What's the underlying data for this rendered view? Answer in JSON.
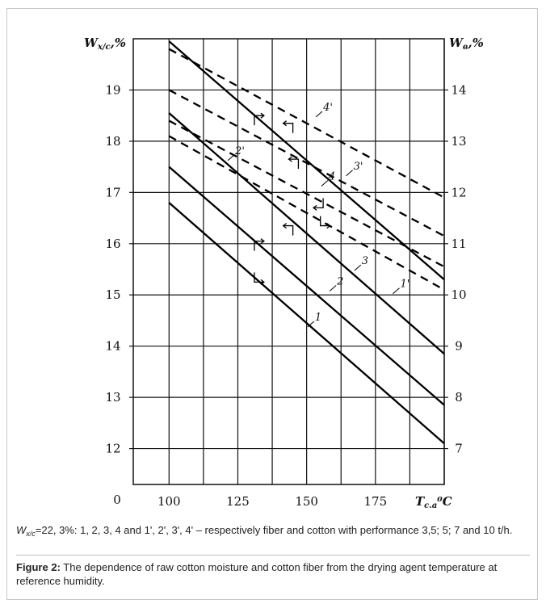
{
  "chart_data": {
    "type": "line",
    "xlabel": {
      "main": "T",
      "sub": "с.а",
      "unit": "⁰C"
    },
    "ylabel_left": {
      "main": "W",
      "sub": "x/c",
      "unit": ",%"
    },
    "ylabel_right": {
      "main": "W",
      "sub": "в",
      "unit": ",%"
    },
    "origin_label": "0",
    "x_ticks": [
      "100",
      "125",
      "150",
      "175"
    ],
    "y_ticks_left": [
      "12",
      "13",
      "14",
      "15",
      "16",
      "17",
      "18",
      "19"
    ],
    "y_ticks_right": [
      "7",
      "8",
      "9",
      "10",
      "11",
      "12",
      "13",
      "14"
    ],
    "xlim": [
      87,
      200
    ],
    "ylim_left": [
      11.3,
      20
    ],
    "ylim_right": [
      6.3,
      15
    ],
    "grid": true,
    "series": [
      {
        "name": "1",
        "style": "solid",
        "axis": "left",
        "x": [
          100,
          200
        ],
        "y": [
          16.8,
          12.1
        ]
      },
      {
        "name": "2",
        "style": "solid",
        "axis": "left",
        "x": [
          100,
          200
        ],
        "y": [
          17.5,
          12.85
        ]
      },
      {
        "name": "3",
        "style": "solid",
        "axis": "left",
        "x": [
          100,
          200
        ],
        "y": [
          18.55,
          13.85
        ]
      },
      {
        "name": "4",
        "style": "solid",
        "axis": "left",
        "x": [
          100,
          200
        ],
        "y": [
          19.95,
          15.3
        ]
      },
      {
        "name": "1'",
        "style": "dashed",
        "axis": "right",
        "x": [
          100,
          200
        ],
        "y": [
          13.1,
          10.1
        ]
      },
      {
        "name": "2'",
        "style": "dashed",
        "axis": "right",
        "x": [
          100,
          200
        ],
        "y": [
          13.4,
          10.55
        ]
      },
      {
        "name": "3'",
        "style": "dashed",
        "axis": "right",
        "x": [
          100,
          200
        ],
        "y": [
          14.0,
          11.15
        ]
      },
      {
        "name": "4'",
        "style": "dashed",
        "axis": "right",
        "x": [
          100,
          200
        ],
        "y": [
          14.8,
          11.9
        ]
      }
    ],
    "curve_labels": [
      {
        "text": "1",
        "x": 153,
        "y": 14.5
      },
      {
        "text": "2",
        "x": 161,
        "y": 15.2
      },
      {
        "text": "3",
        "x": 170,
        "y": 15.6
      },
      {
        "text": "4",
        "x": 158,
        "y": 17.25
      },
      {
        "text": "1'",
        "x": 184,
        "y": 15.15
      },
      {
        "text": "2'",
        "x": 124,
        "y": 17.75
      },
      {
        "text": "3'",
        "x": 167,
        "y": 17.45
      },
      {
        "text": "4'",
        "x": 156,
        "y": 18.6
      }
    ]
  },
  "caption_note": {
    "var_main": "W",
    "var_sub": "x/c",
    "text": "=22, 3%: 1, 2, 3, 4 and 1', 2', 3', 4' – respectively fiber and cotton with performance 3,5; 5; 7 and 10 t/h."
  },
  "caption": {
    "label": "Figure 2:",
    "text": " The dependence of raw cotton moisture and cotton fiber from the drying agent temperature at reference humidity."
  }
}
